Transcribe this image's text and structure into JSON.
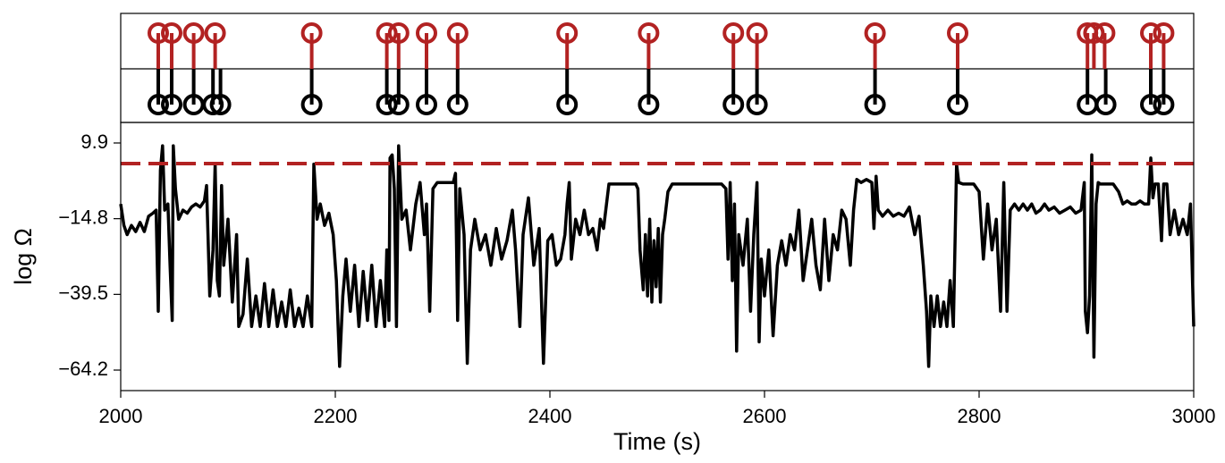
{
  "chart_data": [
    {
      "type": "event",
      "series": [
        {
          "color": "#b22222",
          "side": "up",
          "x": [
            2035,
            2047.5,
            2068,
            2088,
            2178,
            2248,
            2259,
            2285,
            2314,
            2416,
            2492,
            2571,
            2593,
            2703,
            2780,
            2901,
            2907,
            2917,
            2960,
            2972
          ]
        },
        {
          "color": "#000000",
          "side": "down",
          "x": [
            2035,
            2047.5,
            2068,
            2086,
            2093,
            2178,
            2248,
            2259,
            2285,
            2314,
            2416,
            2492,
            2571,
            2593,
            2703,
            2780,
            2901,
            2918,
            2960,
            2972
          ]
        }
      ],
      "xlim": [
        2000,
        3000
      ]
    },
    {
      "type": "line",
      "xlabel": "Time (s)",
      "ylabel": "log Ω",
      "xlim": [
        2000,
        3000
      ],
      "ylim": [
        -70.9,
        16.6
      ],
      "xticks": [
        2000,
        2200,
        2400,
        2600,
        2800,
        3000
      ],
      "yticks": [
        9.9,
        {
          "value": -14.8,
          "label": "−14.8"
        },
        {
          "value": -39.5,
          "label": "−39.5"
        },
        {
          "value": -64.2,
          "label": "−64.2"
        }
      ],
      "hline": 3.2,
      "hline_color": "#b22222",
      "series": [
        {
          "color": "#000000",
          "x": [
            2000,
            2003,
            2006,
            2010,
            2014,
            2018,
            2022,
            2026,
            2030,
            2033,
            2035,
            2037,
            2039,
            2041,
            2044,
            2046,
            2048,
            2049,
            2051,
            2054,
            2058,
            2062,
            2066,
            2070,
            2074,
            2078,
            2080,
            2083,
            2086,
            2088,
            2090,
            2092,
            2094,
            2096,
            2100,
            2104,
            2108,
            2110,
            2114,
            2118,
            2122,
            2126,
            2130,
            2134,
            2138,
            2142,
            2146,
            2150,
            2154,
            2158,
            2162,
            2166,
            2170,
            2174,
            2178,
            2180,
            2183,
            2186,
            2190,
            2194,
            2198,
            2201,
            2204,
            2207,
            2210,
            2214,
            2218,
            2222,
            2226,
            2230,
            2234,
            2238,
            2242,
            2246,
            2248,
            2250,
            2251,
            2253,
            2255,
            2257,
            2259,
            2262,
            2266,
            2270,
            2275,
            2279,
            2283,
            2285,
            2288,
            2291,
            2295,
            2300,
            2305,
            2310,
            2312,
            2314,
            2316,
            2320,
            2323,
            2326,
            2330,
            2335,
            2340,
            2345,
            2350,
            2355,
            2360,
            2365,
            2368,
            2372,
            2375,
            2380,
            2385,
            2390,
            2394,
            2398,
            2402,
            2406,
            2410,
            2414,
            2416,
            2418,
            2420,
            2424,
            2428,
            2432,
            2436,
            2440,
            2444,
            2447,
            2450,
            2455,
            2460,
            2465,
            2470,
            2475,
            2480,
            2482,
            2484,
            2487,
            2489,
            2491,
            2493,
            2495,
            2497,
            2499,
            2501,
            2503,
            2505,
            2507,
            2510,
            2514,
            2520,
            2530,
            2540,
            2550,
            2560,
            2564,
            2566,
            2568,
            2570,
            2572,
            2574,
            2576,
            2580,
            2584,
            2587,
            2590,
            2593,
            2595,
            2597,
            2600,
            2604,
            2608,
            2612,
            2616,
            2620,
            2624,
            2628,
            2632,
            2636,
            2640,
            2644,
            2648,
            2652,
            2656,
            2660,
            2664,
            2668,
            2672,
            2676,
            2680,
            2683,
            2686,
            2690,
            2695,
            2700,
            2702,
            2704,
            2706,
            2710,
            2715,
            2720,
            2725,
            2730,
            2735,
            2740,
            2744,
            2748,
            2751,
            2753,
            2755,
            2758,
            2761,
            2764,
            2767,
            2770,
            2773,
            2776,
            2778,
            2779,
            2781,
            2785,
            2790,
            2795,
            2800,
            2804,
            2808,
            2812,
            2816,
            2820,
            2823,
            2826,
            2829,
            2833,
            2837,
            2841,
            2845,
            2849,
            2853,
            2857,
            2861,
            2865,
            2870,
            2875,
            2880,
            2885,
            2890,
            2895,
            2898,
            2899,
            2901,
            2903,
            2905,
            2907,
            2909,
            2911,
            2913,
            2918,
            2925,
            2930,
            2934,
            2938,
            2942,
            2946,
            2950,
            2954,
            2958,
            2960,
            2962,
            2964,
            2967,
            2970,
            2972,
            2975,
            2978,
            2982,
            2986,
            2990,
            2994,
            2997,
            3000
          ],
          "values": [
            -10,
            -17,
            -20,
            -17,
            -19,
            -16,
            -19,
            -14,
            -13,
            -12,
            -45,
            1,
            9,
            -12,
            -10,
            -30,
            -48,
            9,
            -5,
            -15,
            -12,
            -13,
            -11,
            -10,
            -11,
            -9,
            -4,
            -40,
            -25,
            3,
            -35,
            -40,
            -4,
            -30,
            -15,
            -42,
            -20,
            -50,
            -46,
            -28,
            -50,
            -40,
            -50,
            -36,
            -50,
            -38,
            -50,
            -42,
            -50,
            -38,
            -50,
            -44,
            -50,
            -40,
            -50,
            3,
            -15,
            -10,
            -17,
            -13,
            -20,
            -35,
            -63,
            -40,
            -28,
            -45,
            -30,
            -50,
            -32,
            -48,
            -30,
            -50,
            -35,
            -50,
            -25,
            -48,
            5,
            6,
            -5,
            -50,
            9,
            -15,
            -12,
            -25,
            -10,
            -3,
            -20,
            -10,
            -45,
            -5,
            -3,
            -3,
            -3,
            -3,
            0,
            -48,
            -5,
            -20,
            -62,
            -25,
            -15,
            -25,
            -20,
            -30,
            -18,
            -28,
            -22,
            -12,
            -25,
            -50,
            -20,
            -8,
            -30,
            -18,
            -62,
            -22,
            -20,
            -30,
            -28,
            -20,
            -10,
            -3,
            -28,
            -15,
            -20,
            -12,
            -20,
            -18,
            -25,
            -15,
            -18,
            -3.5,
            -3.5,
            -3.5,
            -3.5,
            -3.5,
            -3.5,
            -5,
            -25,
            -38,
            -20,
            -40,
            -15,
            -42,
            -22,
            -37,
            -18,
            -42,
            -20,
            -15,
            -6,
            -3.5,
            -3.5,
            -3.5,
            -3.5,
            -3.5,
            -3.5,
            -5,
            -28,
            -3,
            -35,
            -10,
            -58,
            -20,
            -30,
            -15,
            -45,
            -20,
            -3,
            -55,
            -28,
            -40,
            -25,
            -53,
            -30,
            -22,
            -30,
            -20,
            -25,
            -12,
            -35,
            -25,
            -15,
            -30,
            -38,
            -15,
            -35,
            -20,
            -25,
            -12,
            -15,
            -30,
            -12,
            -2,
            -3,
            -2,
            -3,
            -18,
            -1,
            -12,
            -14,
            -12,
            -14,
            -13,
            -14,
            -11,
            -20,
            -14,
            -30,
            -45,
            -63,
            -40,
            -50,
            -40,
            -50,
            -42,
            -50,
            -35,
            -50,
            -15,
            3,
            -3,
            -3.5,
            -3.5,
            -3.5,
            -6,
            -28,
            -10,
            -25,
            -15,
            -45,
            -3,
            -45,
            -12,
            -10,
            -12,
            -10,
            -12,
            -10,
            -13,
            -12,
            -10,
            -12,
            -11,
            -13,
            -12,
            -11,
            -13,
            -12,
            -3,
            -45,
            -52,
            -40,
            6,
            -60,
            -10,
            -3,
            -3.5,
            -3.5,
            -3.5,
            -6,
            -10,
            -9,
            -10,
            -10,
            -9,
            -10,
            -10,
            5,
            -8,
            -3.5,
            -3.5,
            -22,
            -3.5,
            -3.5,
            -20,
            -12,
            -20,
            -15,
            -20,
            -10,
            -50
          ]
        }
      ]
    }
  ]
}
